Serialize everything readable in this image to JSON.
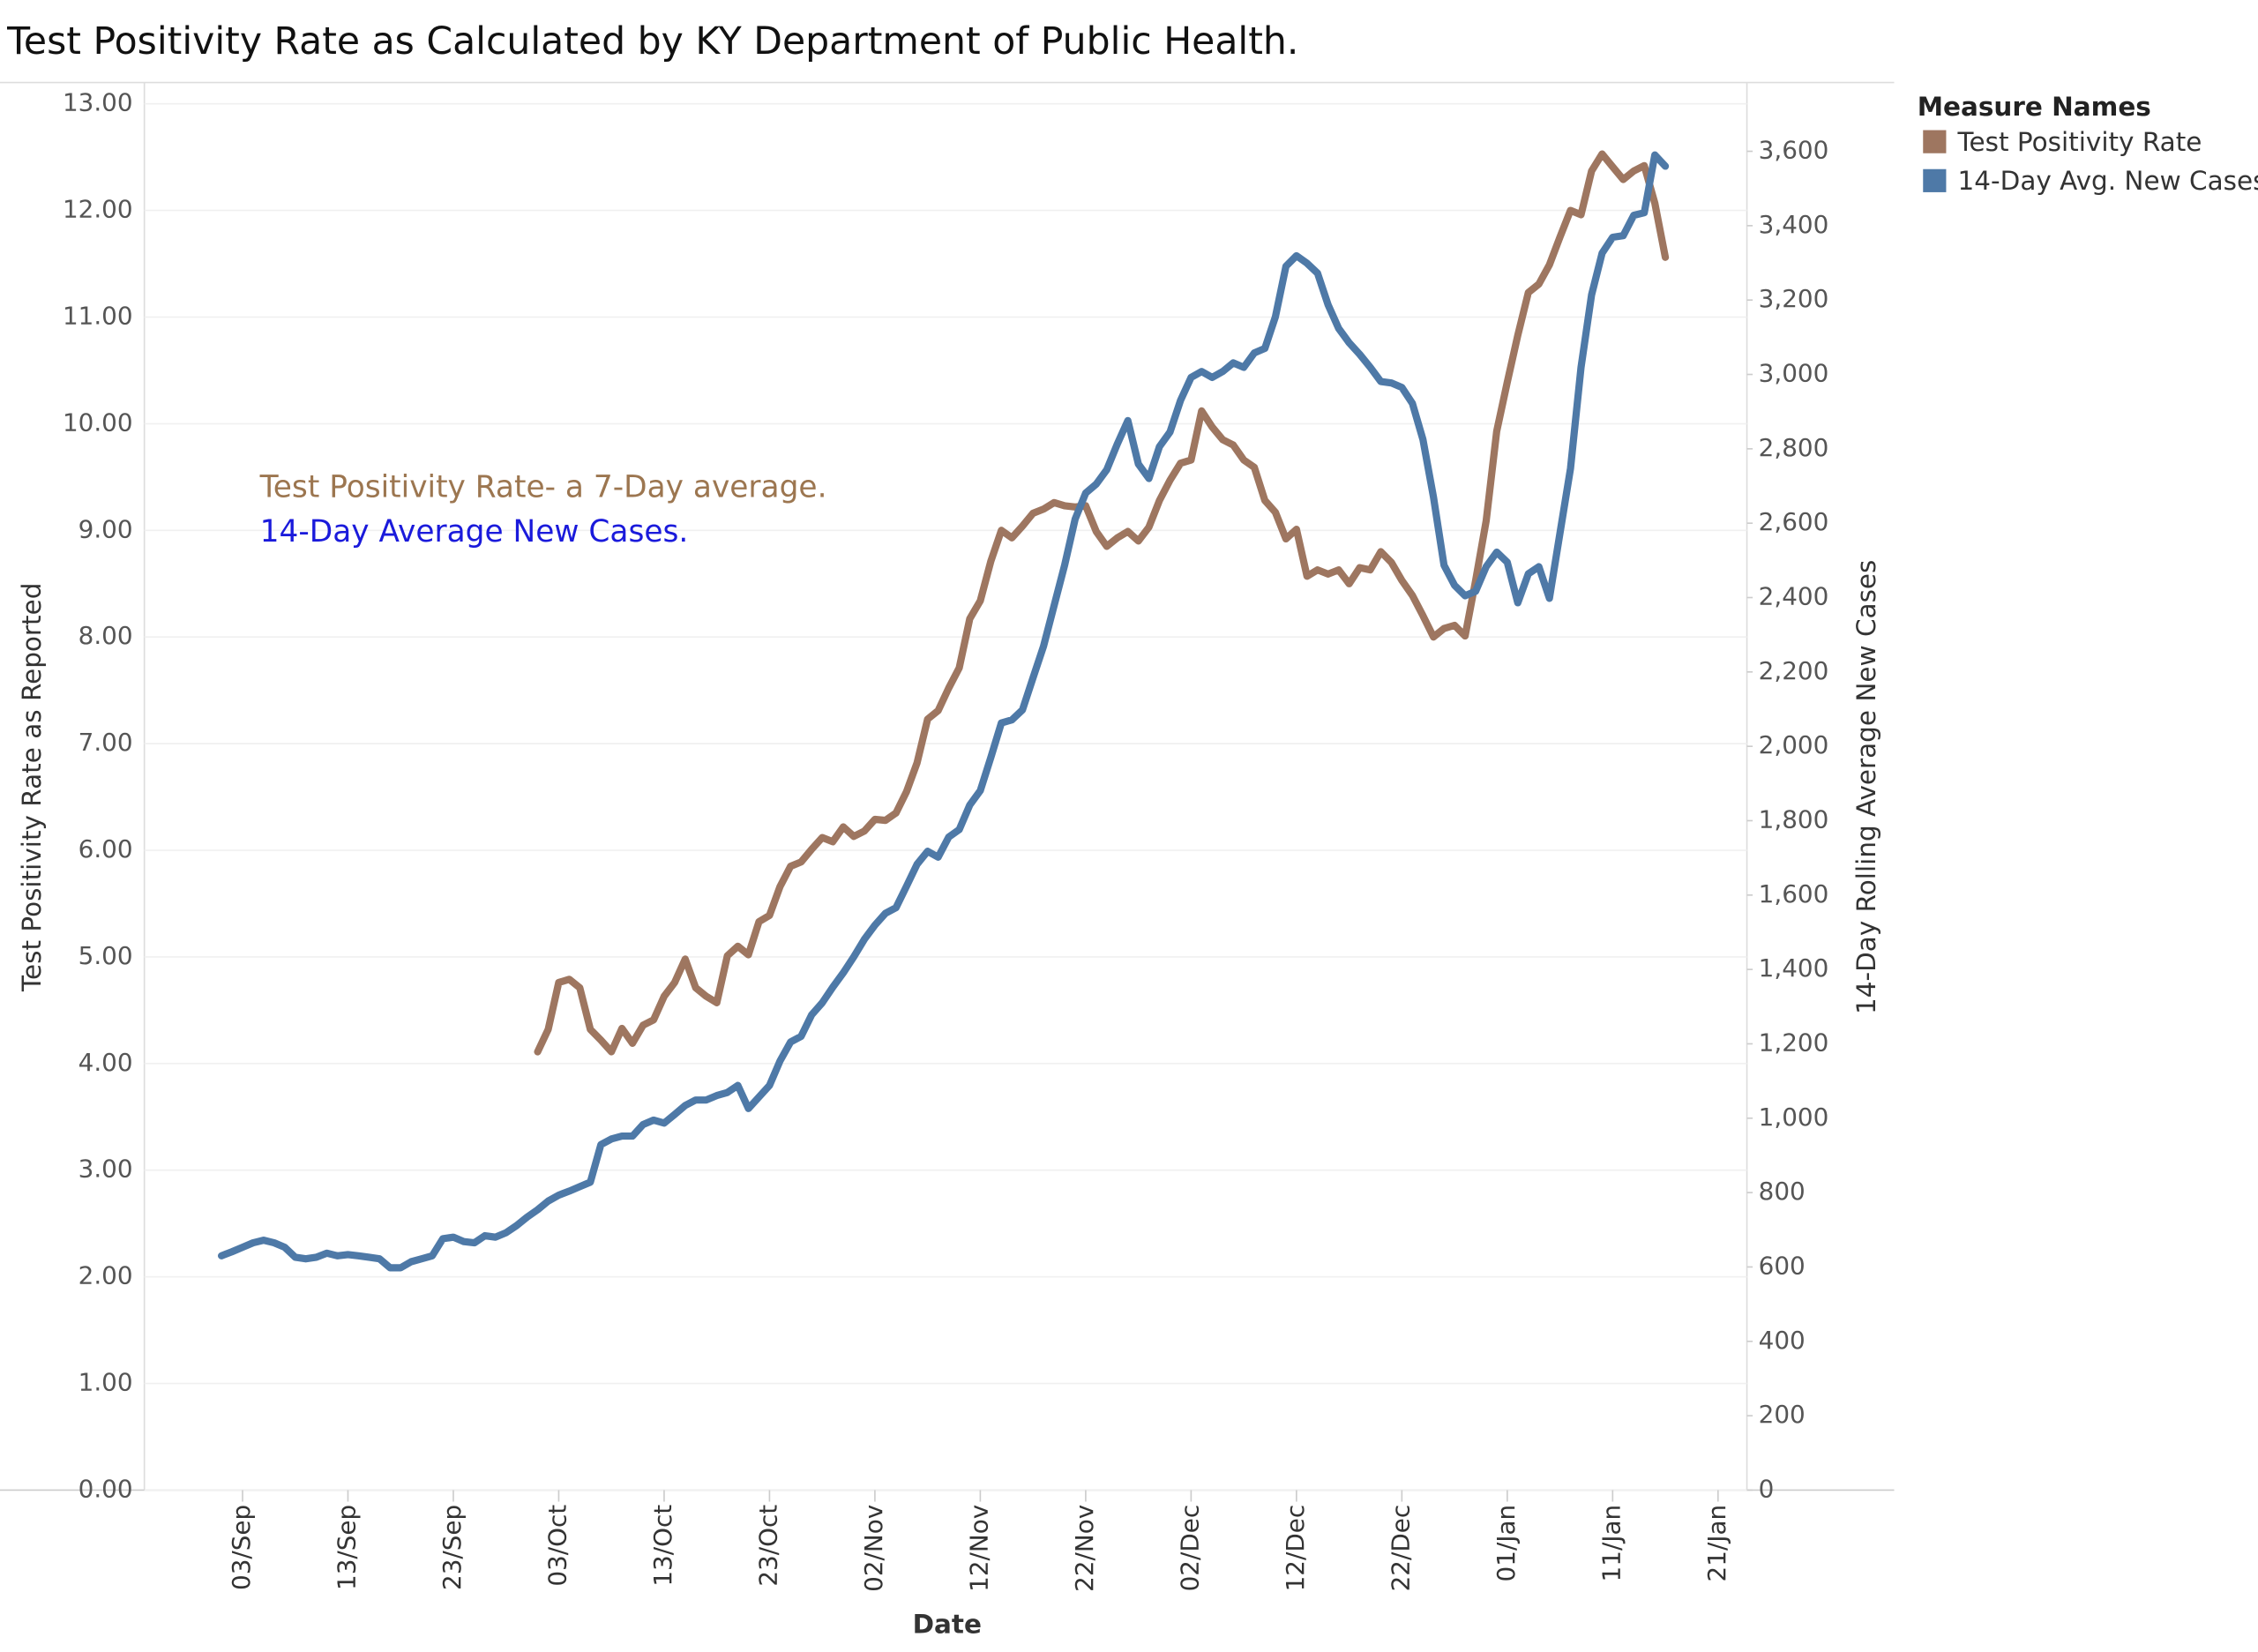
{
  "chart_data": {
    "type": "line",
    "title": "Test Positivity Rate as Calculated by KY Department of Public Health.",
    "x_label": "Date",
    "y_label": "Test Positivity Rate as Reported",
    "y2_label": "14-Day Rolling Average New Cases",
    "legend_title": "Measure Names",
    "legend": "right",
    "grid": true,
    "annotations": [
      {
        "text": "Test Positivity Rate- a 7-Day average.",
        "color": "#9c7650"
      },
      {
        "text": "14-Day Average New Cases.",
        "color": "#1a1adb"
      }
    ],
    "categories": [
      null,
      null,
      "03/Sep",
      null,
      null,
      null,
      null,
      null,
      null,
      null,
      null,
      null,
      "13/Sep",
      null,
      null,
      null,
      null,
      null,
      null,
      null,
      null,
      null,
      "23/Sep",
      null,
      null,
      null,
      null,
      null,
      null,
      null,
      null,
      null,
      "03/Oct",
      null,
      null,
      null,
      null,
      null,
      null,
      null,
      null,
      null,
      "13/Oct",
      null,
      null,
      null,
      null,
      null,
      null,
      null,
      null,
      null,
      "23/Oct",
      null,
      null,
      null,
      null,
      null,
      null,
      null,
      null,
      null,
      "02/Nov",
      null,
      null,
      null,
      null,
      null,
      null,
      null,
      null,
      null,
      "12/Nov",
      null,
      null,
      null,
      null,
      null,
      null,
      null,
      null,
      null,
      "22/Nov",
      null,
      null,
      null,
      null,
      null,
      null,
      null,
      null,
      null,
      "02/Dec",
      null,
      null,
      null,
      null,
      null,
      null,
      null,
      null,
      null,
      "12/Dec",
      null,
      null,
      null,
      null,
      null,
      null,
      null,
      null,
      null,
      "22/Dec",
      null,
      null,
      null,
      null,
      null,
      null,
      null,
      null,
      null,
      "01/Jan",
      null,
      null,
      null,
      null,
      null,
      null,
      null,
      null,
      null,
      "11/Jan",
      null,
      null,
      null,
      null,
      null,
      null,
      null,
      null,
      null,
      "21/Jan"
    ],
    "series": [
      {
        "name": "Test Positivity Rate",
        "color": "#9e7660",
        "axis": "y",
        "values": [
          null,
          null,
          null,
          null,
          null,
          null,
          null,
          null,
          null,
          null,
          null,
          null,
          null,
          null,
          null,
          null,
          null,
          null,
          null,
          null,
          null,
          null,
          null,
          null,
          null,
          null,
          null,
          null,
          null,
          null,
          4.11,
          4.32,
          4.76,
          4.79,
          4.71,
          4.32,
          4.22,
          4.11,
          4.33,
          4.19,
          4.36,
          4.41,
          4.63,
          4.76,
          4.98,
          4.71,
          4.63,
          4.57,
          5.01,
          5.1,
          5.02,
          5.33,
          5.39,
          5.66,
          5.85,
          5.89,
          6.01,
          6.12,
          6.08,
          6.22,
          6.13,
          6.18,
          6.29,
          6.28,
          6.35,
          6.55,
          6.82,
          7.23,
          7.31,
          7.52,
          7.71,
          8.17,
          8.34,
          8.71,
          9.0,
          8.93,
          9.04,
          9.16,
          9.2,
          9.26,
          9.23,
          9.22,
          9.23,
          8.99,
          8.85,
          8.93,
          8.99,
          8.9,
          9.03,
          9.28,
          9.47,
          9.63,
          9.66,
          10.12,
          9.97,
          9.85,
          9.8,
          9.66,
          9.59,
          9.28,
          9.17,
          8.92,
          9.01,
          8.57,
          8.63,
          8.59,
          8.63,
          8.5,
          8.65,
          8.63,
          8.8,
          8.7,
          8.53,
          8.39,
          8.2,
          8.0,
          8.08,
          8.11,
          8.01,
          8.53,
          9.09,
          9.93,
          10.39,
          10.83,
          11.23,
          11.31,
          11.49,
          11.75,
          12.0,
          11.96,
          12.37,
          12.53,
          12.41,
          12.29,
          12.37,
          12.42,
          12.07,
          11.56,
          null,
          null,
          null,
          null,
          null
        ]
      },
      {
        "name": "14-Day Avg. New Cases",
        "color": "#4e79a7",
        "axis": "y2",
        "values": [
          630,
          641,
          653,
          665,
          672,
          665,
          653,
          626,
          622,
          626,
          637,
          630,
          633,
          630,
          626,
          622,
          598,
          598,
          614,
          622,
          630,
          676,
          680,
          668,
          665,
          684,
          680,
          692,
          711,
          734,
          754,
          777,
          793,
          804,
          816,
          828,
          929,
          944,
          952,
          952,
          983,
          995,
          987,
          1010,
          1034,
          1049,
          1049,
          1061,
          1069,
          1088,
          1026,
          1057,
          1088,
          1154,
          1205,
          1220,
          1278,
          1310,
          1352,
          1391,
          1434,
          1481,
          1519,
          1551,
          1566,
          1624,
          1683,
          1718,
          1702,
          1756,
          1776,
          1842,
          1881,
          1970,
          2063,
          2071,
          2098,
          2184,
          2269,
          2378,
          2487,
          2611,
          2681,
          2705,
          2744,
          2813,
          2876,
          2759,
          2720,
          2806,
          2845,
          2930,
          2992,
          3008,
          2992,
          3008,
          3031,
          3019,
          3058,
          3070,
          3155,
          3291,
          3319,
          3299,
          3272,
          3187,
          3124,
          3085,
          3054,
          3019,
          2981,
          2977,
          2965,
          2922,
          2825,
          2670,
          2487,
          2433,
          2405,
          2417,
          2483,
          2522,
          2495,
          2386,
          2464,
          2483,
          2398,
          2573,
          2747,
          3019,
          3214,
          3326,
          3369,
          3373,
          3428,
          3435,
          3590,
          3560,
          null,
          null,
          null,
          null,
          null
        ]
      }
    ],
    "ylim": [
      0,
      13.2
    ],
    "yticks": [
      {
        "value": 0,
        "label": "0.00"
      },
      {
        "value": 1,
        "label": "1.00"
      },
      {
        "value": 2,
        "label": "2.00"
      },
      {
        "value": 3,
        "label": "3.00"
      },
      {
        "value": 4,
        "label": "4.00"
      },
      {
        "value": 5,
        "label": "5.00"
      },
      {
        "value": 6,
        "label": "6.00"
      },
      {
        "value": 7,
        "label": "7.00"
      },
      {
        "value": 8,
        "label": "8.00"
      },
      {
        "value": 9,
        "label": "9.00"
      },
      {
        "value": 10,
        "label": "10.00"
      },
      {
        "value": 11,
        "label": "11.00"
      },
      {
        "value": 12,
        "label": "12.00"
      },
      {
        "value": 13,
        "label": "13.00"
      }
    ],
    "y2lim": [
      0,
      3785
    ],
    "y2ticks": [
      0,
      200,
      400,
      600,
      800,
      {
        "value": 1000,
        "label": "1,000"
      },
      {
        "value": 1200,
        "label": "1,200"
      },
      {
        "value": 1400,
        "label": "1,400"
      },
      {
        "value": 1600,
        "label": "1,600"
      },
      {
        "value": 1800,
        "label": "1,800"
      },
      {
        "value": 2000,
        "label": "2,000"
      },
      {
        "value": 2200,
        "label": "2,200"
      },
      {
        "value": 2400,
        "label": "2,400"
      },
      {
        "value": 2600,
        "label": "2,600"
      },
      {
        "value": 2800,
        "label": "2,800"
      },
      {
        "value": 3000,
        "label": "3,000"
      },
      {
        "value": 3200,
        "label": "3,200"
      },
      {
        "value": 3400,
        "label": "3,400"
      },
      {
        "value": 3600,
        "label": "3,600"
      }
    ]
  }
}
